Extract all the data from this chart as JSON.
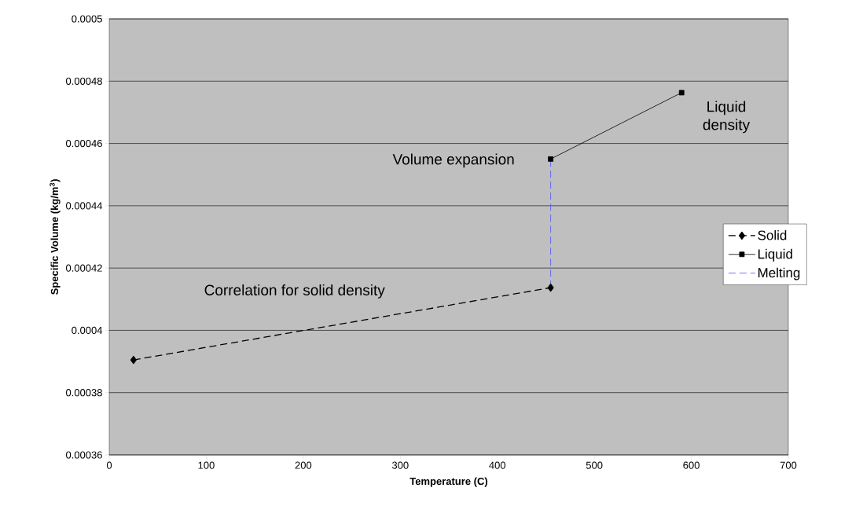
{
  "chart_data": {
    "type": "line",
    "xlabel": "Temperature (C)",
    "ylabel": "Specific Volume (kg/m$^{3}$)",
    "xlim": [
      0,
      700
    ],
    "xticks": [
      0,
      100,
      200,
      300,
      400,
      500,
      600,
      700
    ],
    "ylim": [
      0.00036,
      0.0005
    ],
    "yticks": [
      0.00036,
      0.00038,
      0.0004,
      0.00042,
      0.00044,
      0.00046,
      0.00048,
      0.0005
    ],
    "grid": "y",
    "legend": "right",
    "series": [
      {
        "name": "Solid",
        "color": "#000000",
        "x": [
          25,
          455
        ],
        "values": [
          0.0003905,
          0.0004137
        ],
        "marker": "diamond",
        "line_style": "dashed"
      },
      {
        "name": "Liquid",
        "color": "#000000",
        "x": [
          455,
          590
        ],
        "values": [
          0.000455,
          0.0004763
        ],
        "marker": "square",
        "line_style": "solid"
      },
      {
        "name": "Melting",
        "color": "#4f4fff",
        "x": [
          455,
          455
        ],
        "values": [
          0.0004137,
          0.000455
        ],
        "marker": "none",
        "line_style": "dashed"
      }
    ],
    "annotations": [
      "Liquid density",
      "Volume expansion",
      "Correlation for solid density"
    ]
  }
}
